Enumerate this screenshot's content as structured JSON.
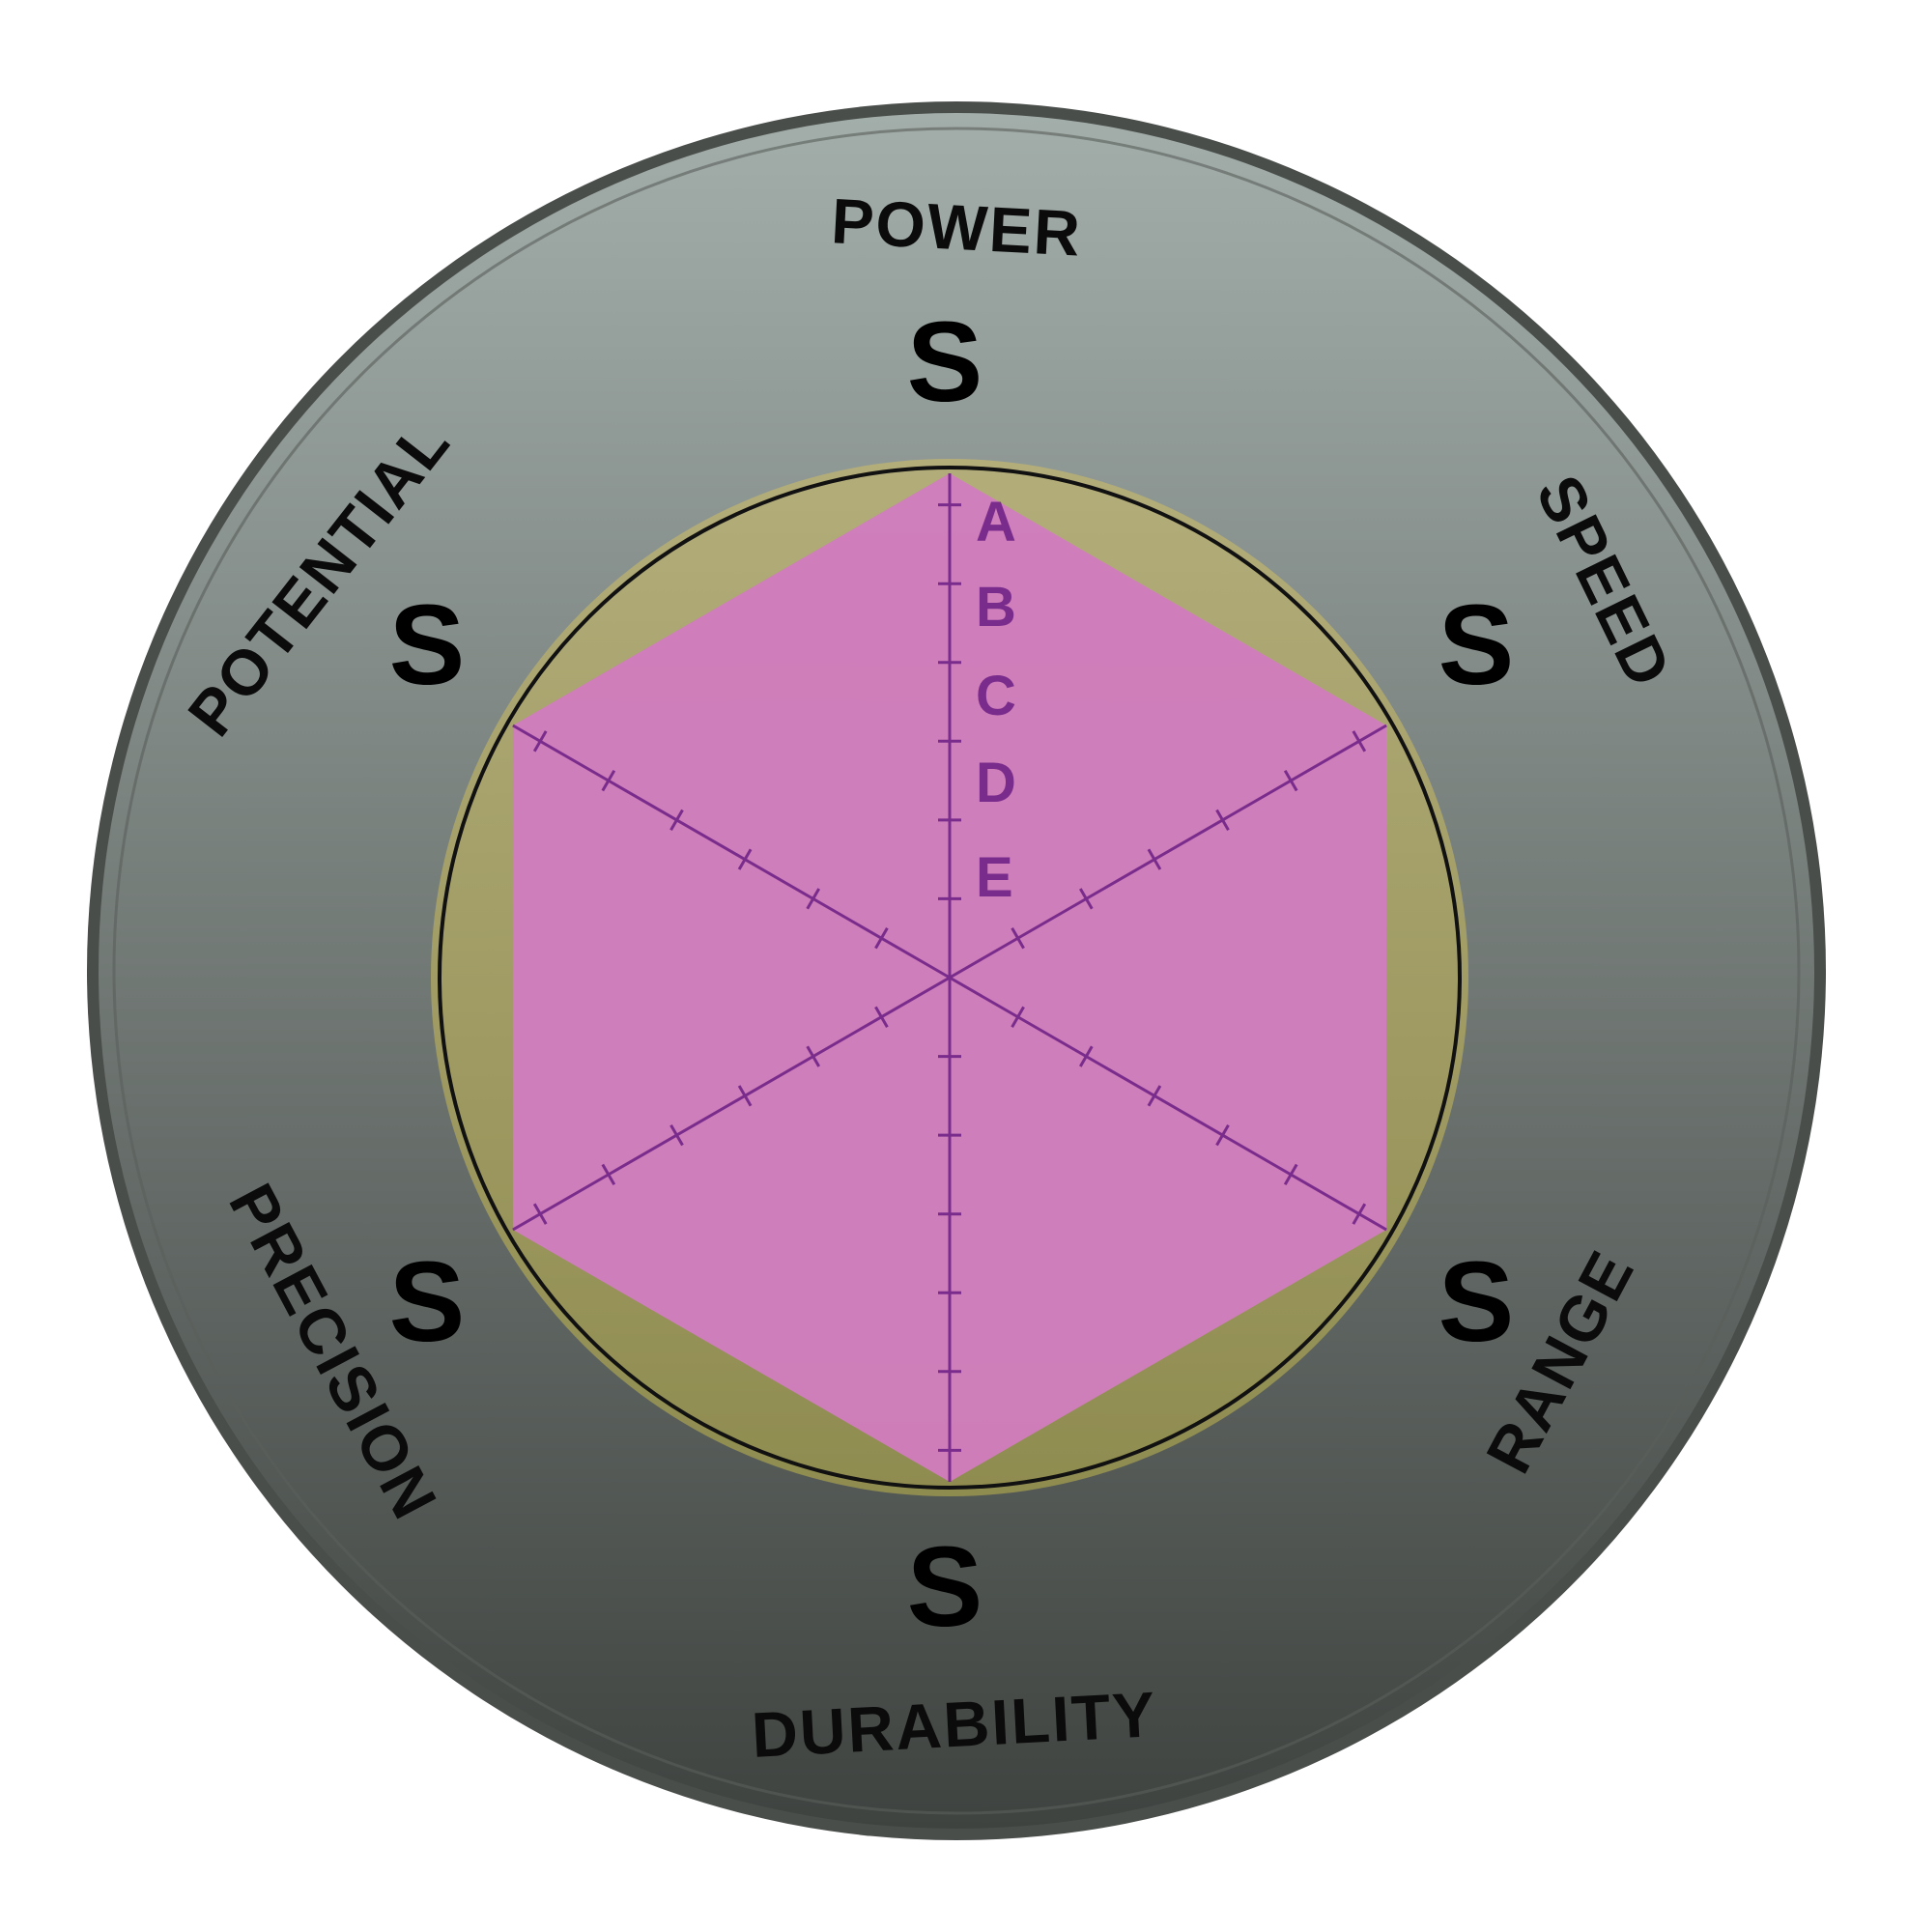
{
  "chart_data": {
    "type": "radar",
    "scale": [
      "A",
      "B",
      "C",
      "D",
      "E"
    ],
    "axes": [
      {
        "name": "POWER",
        "grade": "S"
      },
      {
        "name": "SPEED",
        "grade": "S"
      },
      {
        "name": "RANGE",
        "grade": "S"
      },
      {
        "name": "DURABILITY",
        "grade": "S"
      },
      {
        "name": "PRECISION",
        "grade": "S"
      },
      {
        "name": "POTENTIAL",
        "grade": "S"
      }
    ],
    "values": [
      1,
      1,
      1,
      1,
      1,
      1
    ],
    "colors": {
      "ring_top": "#a3aeaa",
      "ring_bottom": "#3f4340",
      "disc": "#b3ad7a",
      "disc_dark": "#8f8c50",
      "fill": "#d07dbd",
      "axis": "#7a2c8c",
      "text": "#000000"
    }
  }
}
